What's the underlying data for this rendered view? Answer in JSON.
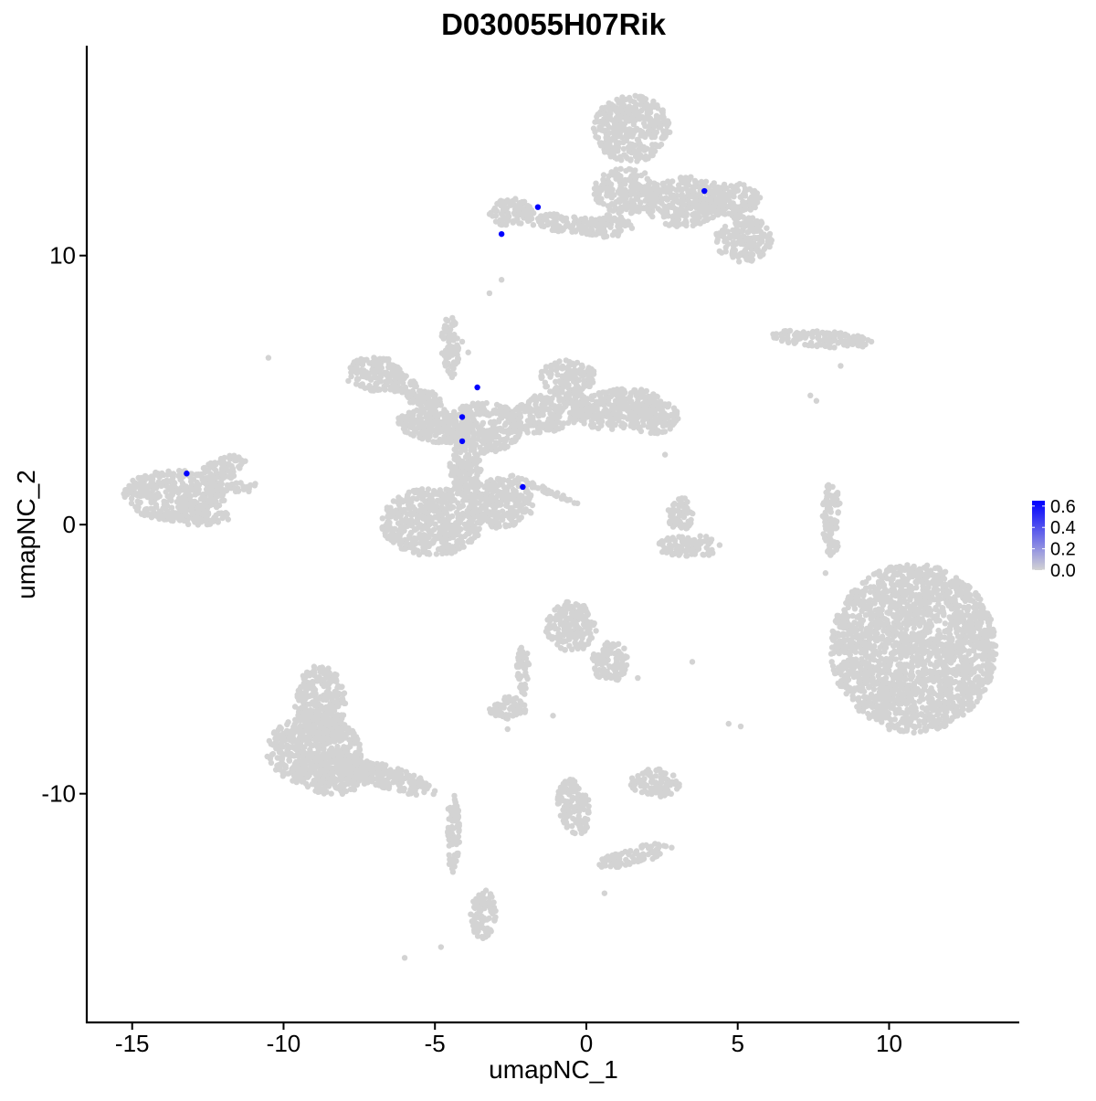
{
  "chart_data": {
    "type": "scatter",
    "title": "D030055H07Rik",
    "xlabel": "umapNC_1",
    "ylabel": "umapNC_2",
    "xlim": [
      -16.5,
      14.3
    ],
    "ylim": [
      -18.5,
      17.8
    ],
    "x_ticks": [
      -15,
      -10,
      -5,
      0,
      5,
      10
    ],
    "x_tick_labels": [
      "-15",
      "-10",
      "-5",
      "0",
      "5",
      "10"
    ],
    "y_ticks": [
      -10,
      0,
      10
    ],
    "y_tick_labels": [
      "-10",
      "0",
      "10"
    ],
    "grid": false,
    "colors": {
      "low": "#d3d3d3",
      "high": "#0000ff",
      "axis": "#000000"
    },
    "colorbar": {
      "min": 0.0,
      "max": 0.65,
      "ticks": [
        0.0,
        0.2,
        0.4,
        0.6
      ],
      "tick_labels": [
        "0.0",
        "0.2",
        "0.4",
        "0.6"
      ],
      "placement": "right"
    },
    "cell_clusters": [
      {
        "cx": -13.6,
        "cy": 1.1,
        "rx": 1.6,
        "ry": 0.9,
        "angle": 0
      },
      {
        "cx": -12.1,
        "cy": 2.0,
        "rx": 0.9,
        "ry": 0.4,
        "angle": 30
      },
      {
        "cx": -11.6,
        "cy": 1.4,
        "rx": 0.8,
        "ry": 0.2,
        "angle": 0
      },
      {
        "cx": -12.8,
        "cy": 0.3,
        "rx": 1.0,
        "ry": 0.3,
        "angle": 0
      },
      {
        "cx": -7.0,
        "cy": 5.6,
        "rx": 0.9,
        "ry": 0.6,
        "angle": 0
      },
      {
        "cx": -5.8,
        "cy": 5.0,
        "rx": 1.1,
        "ry": 0.4,
        "angle": -30
      },
      {
        "cx": -5.0,
        "cy": 3.7,
        "rx": 1.2,
        "ry": 0.6,
        "angle": -10
      },
      {
        "cx": -4.5,
        "cy": 6.6,
        "rx": 0.3,
        "ry": 1.1,
        "angle": 0
      },
      {
        "cx": -3.4,
        "cy": 3.6,
        "rx": 1.2,
        "ry": 0.9,
        "angle": 0
      },
      {
        "cx": -4.0,
        "cy": 2.0,
        "rx": 0.5,
        "ry": 1.1,
        "angle": 0
      },
      {
        "cx": -5.1,
        "cy": 0.1,
        "rx": 1.6,
        "ry": 1.2,
        "angle": 0
      },
      {
        "cx": -2.8,
        "cy": 0.8,
        "rx": 1.0,
        "ry": 0.9,
        "angle": 0
      },
      {
        "cx": -1.2,
        "cy": 4.2,
        "rx": 1.3,
        "ry": 0.7,
        "angle": 20
      },
      {
        "cx": -0.6,
        "cy": 5.5,
        "rx": 0.9,
        "ry": 0.6,
        "angle": 0
      },
      {
        "cx": 1.0,
        "cy": 4.3,
        "rx": 1.4,
        "ry": 0.7,
        "angle": 10
      },
      {
        "cx": 2.2,
        "cy": 4.0,
        "rx": 0.8,
        "ry": 0.6,
        "angle": 0
      },
      {
        "cx": -1.4,
        "cy": 1.3,
        "rx": 1.2,
        "ry": 0.1,
        "angle": -25
      },
      {
        "cx": -2.5,
        "cy": 11.6,
        "rx": 0.7,
        "ry": 0.5,
        "angle": 0
      },
      {
        "cx": -0.8,
        "cy": 11.2,
        "rx": 1.3,
        "ry": 0.3,
        "angle": -10
      },
      {
        "cx": 0.6,
        "cy": 11.1,
        "rx": 0.9,
        "ry": 0.4,
        "angle": 0
      },
      {
        "cx": 1.5,
        "cy": 14.7,
        "rx": 1.2,
        "ry": 1.2,
        "angle": 0
      },
      {
        "cx": 1.3,
        "cy": 12.4,
        "rx": 1.0,
        "ry": 0.8,
        "angle": 0
      },
      {
        "cx": 3.2,
        "cy": 12.0,
        "rx": 1.2,
        "ry": 0.9,
        "angle": 0
      },
      {
        "cx": 5.2,
        "cy": 10.6,
        "rx": 0.9,
        "ry": 0.8,
        "angle": 0
      },
      {
        "cx": 4.6,
        "cy": 12.1,
        "rx": 1.1,
        "ry": 0.6,
        "angle": 0
      },
      {
        "cx": 7.8,
        "cy": 6.9,
        "rx": 1.6,
        "ry": 0.3,
        "angle": -5
      },
      {
        "cx": 3.1,
        "cy": 0.4,
        "rx": 0.4,
        "ry": 0.6,
        "angle": 0
      },
      {
        "cx": 3.4,
        "cy": -0.8,
        "rx": 1.0,
        "ry": 0.4,
        "angle": 0
      },
      {
        "cx": 8.1,
        "cy": 0.2,
        "rx": 0.3,
        "ry": 1.3,
        "angle": 0
      },
      {
        "cx": 10.8,
        "cy": -4.6,
        "rx": 2.6,
        "ry": 3.0,
        "angle": 0
      },
      {
        "cx": -0.5,
        "cy": -3.8,
        "rx": 0.8,
        "ry": 0.9,
        "angle": 0
      },
      {
        "cx": 0.8,
        "cy": -5.1,
        "rx": 0.6,
        "ry": 0.7,
        "angle": 0
      },
      {
        "cx": -2.1,
        "cy": -5.4,
        "rx": 0.2,
        "ry": 0.9,
        "angle": 0
      },
      {
        "cx": -2.6,
        "cy": -6.8,
        "rx": 0.6,
        "ry": 0.4,
        "angle": 0
      },
      {
        "cx": -8.8,
        "cy": -6.6,
        "rx": 0.8,
        "ry": 1.3,
        "angle": 0
      },
      {
        "cx": -9.0,
        "cy": -8.4,
        "rx": 1.5,
        "ry": 1.2,
        "angle": 0
      },
      {
        "cx": -8.3,
        "cy": -9.2,
        "rx": 1.3,
        "ry": 0.8,
        "angle": 0
      },
      {
        "cx": -6.5,
        "cy": -9.4,
        "rx": 1.6,
        "ry": 0.4,
        "angle": -20
      },
      {
        "cx": -4.4,
        "cy": -11.5,
        "rx": 0.2,
        "ry": 1.5,
        "angle": 0
      },
      {
        "cx": -3.4,
        "cy": -14.5,
        "rx": 0.4,
        "ry": 0.9,
        "angle": 0
      },
      {
        "cx": -0.4,
        "cy": -10.5,
        "rx": 0.5,
        "ry": 1.0,
        "angle": 10
      },
      {
        "cx": 1.6,
        "cy": -12.3,
        "rx": 1.2,
        "ry": 0.3,
        "angle": 15
      },
      {
        "cx": 2.3,
        "cy": -9.6,
        "rx": 0.8,
        "ry": 0.5,
        "angle": 0
      }
    ],
    "stray_points": [
      {
        "x": -10.5,
        "y": 6.2
      },
      {
        "x": -3.2,
        "y": 8.6
      },
      {
        "x": -2.8,
        "y": 9.1
      },
      {
        "x": -4.1,
        "y": 6.8
      },
      {
        "x": -3.9,
        "y": 6.4
      },
      {
        "x": 7.4,
        "y": 4.8
      },
      {
        "x": 7.6,
        "y": 4.6
      },
      {
        "x": 8.4,
        "y": 5.9
      },
      {
        "x": 2.6,
        "y": 2.6
      },
      {
        "x": 1.7,
        "y": -5.7
      },
      {
        "x": 3.5,
        "y": -5.1
      },
      {
        "x": 4.7,
        "y": -7.4
      },
      {
        "x": 5.1,
        "y": -7.5
      },
      {
        "x": -1.1,
        "y": -7.1
      },
      {
        "x": -2.6,
        "y": -7.6
      },
      {
        "x": -0.5,
        "y": -9.7
      },
      {
        "x": 0.6,
        "y": -13.7
      },
      {
        "x": -6.0,
        "y": -16.1
      },
      {
        "x": -4.8,
        "y": -15.7
      },
      {
        "x": -4.2,
        "y": -11.2
      },
      {
        "x": 7.9,
        "y": -1.8
      }
    ],
    "expressing_cells": [
      {
        "x": 3.9,
        "y": 12.4,
        "value": 0.65
      },
      {
        "x": -1.6,
        "y": 11.8,
        "value": 0.65
      },
      {
        "x": -2.8,
        "y": 10.8,
        "value": 0.65
      },
      {
        "x": -3.6,
        "y": 5.1,
        "value": 0.65
      },
      {
        "x": -4.1,
        "y": 4.0,
        "value": 0.65
      },
      {
        "x": -4.1,
        "y": 3.1,
        "value": 0.65
      },
      {
        "x": -2.1,
        "y": 1.4,
        "value": 0.65
      },
      {
        "x": -13.2,
        "y": 1.9,
        "value": 0.65
      }
    ]
  }
}
